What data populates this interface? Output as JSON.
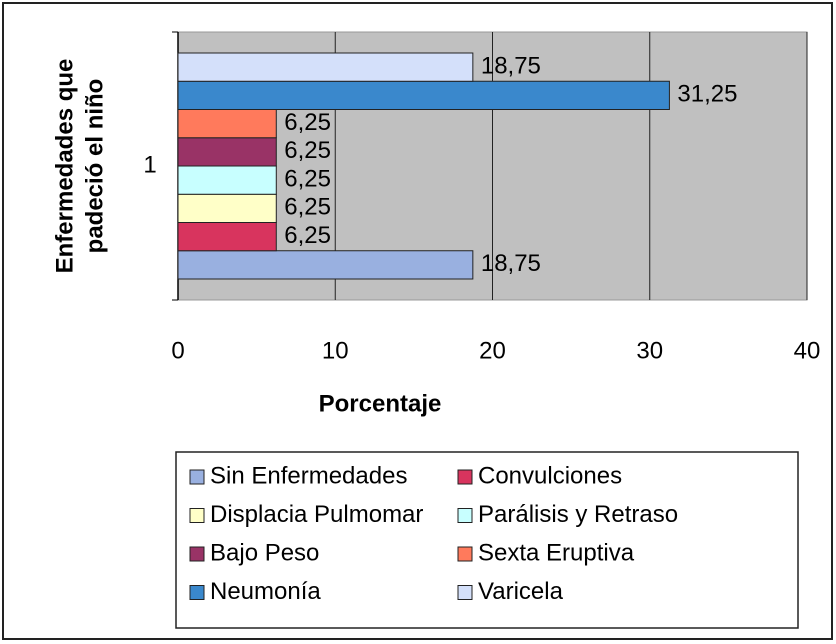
{
  "chart_data": {
    "type": "bar",
    "orientation": "horizontal",
    "ylabel": [
      "Enfermedades que",
      "padeció el niño"
    ],
    "xlabel": "Porcentaje",
    "categories": [
      "1"
    ],
    "series": [
      {
        "name": "Sin Enfermedades",
        "color": "#99b0e0",
        "values": [
          18.75
        ],
        "value_labels": [
          "18,75"
        ]
      },
      {
        "name": "Convulciones",
        "color": "#d8345e",
        "values": [
          6.25
        ],
        "value_labels": [
          "6,25"
        ]
      },
      {
        "name": "Displacia Pulmomar",
        "color": "#ffffc8",
        "values": [
          6.25
        ],
        "value_labels": [
          "6,25"
        ]
      },
      {
        "name": "Parálisis y Retraso",
        "color": "#c8ffff",
        "values": [
          6.25
        ],
        "value_labels": [
          "6,25"
        ]
      },
      {
        "name": "Bajo Peso",
        "color": "#993366",
        "values": [
          6.25
        ],
        "value_labels": [
          "6,25"
        ]
      },
      {
        "name": "Sexta Eruptiva",
        "color": "#ff7a5c",
        "values": [
          6.25
        ],
        "value_labels": [
          "6,25"
        ]
      },
      {
        "name": "Neumonía",
        "color": "#3a88cc",
        "values": [
          31.25
        ],
        "value_labels": [
          "31,25"
        ]
      },
      {
        "name": "Varicela",
        "color": "#d4e0fa",
        "values": [
          18.75
        ],
        "value_labels": [
          "18,75"
        ]
      }
    ],
    "xlim": [
      0,
      40
    ],
    "xticks": [
      0,
      10,
      20,
      30,
      40
    ],
    "grid": true,
    "legend": "bottom"
  }
}
